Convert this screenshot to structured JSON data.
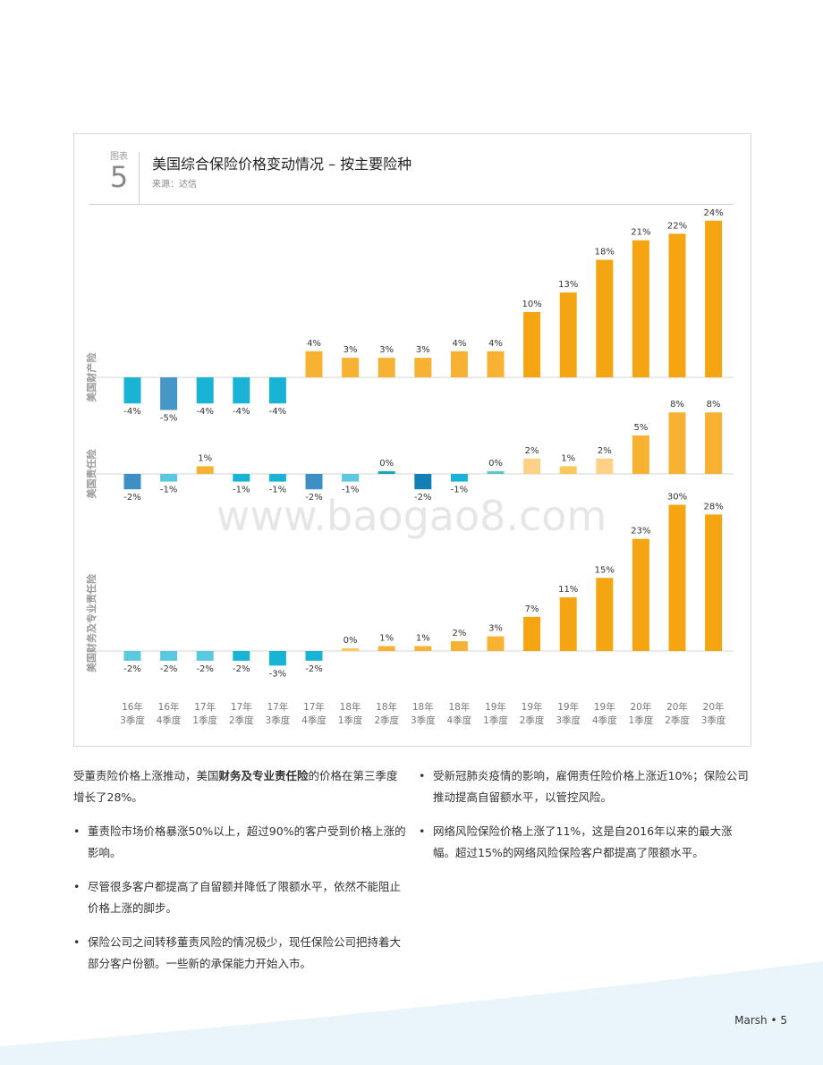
{
  "figure": {
    "label": "图表",
    "number": "5",
    "title": "美国综合保险价格变动情况 – 按主要险种",
    "source": "来源：达信"
  },
  "chart_data": {
    "type": "bar",
    "categories": [
      "16年\n3季度",
      "16年\n4季度",
      "17年\n1季度",
      "17年\n2季度",
      "17年\n3季度",
      "17年\n4季度",
      "18年\n1季度",
      "18年\n2季度",
      "18年\n3季度",
      "18年\n4季度",
      "19年\n1季度",
      "19年\n2季度",
      "19年\n3季度",
      "19年\n4季度",
      "20年\n1季度",
      "20年\n2季度",
      "20年\n3季度"
    ],
    "series": [
      {
        "name": "美国财产险",
        "values": [
          -4,
          -5,
          -4,
          -4,
          -4,
          4,
          3,
          3,
          3,
          4,
          4,
          10,
          13,
          18,
          21,
          22,
          24
        ],
        "colors": [
          "#19b3d6",
          "#4597c6",
          "#19b3d6",
          "#19b3d6",
          "#19b3d6",
          "#f8b233",
          "#f8b233",
          "#f8b233",
          "#f8b233",
          "#f8b233",
          "#f8b233",
          "#f5a511",
          "#f5a511",
          "#f5a511",
          "#f5a511",
          "#f5a511",
          "#f5a511"
        ]
      },
      {
        "name": "美国责任险",
        "values": [
          -2,
          -1,
          1,
          -1,
          -1,
          -2,
          -1,
          0,
          -2,
          -1,
          0,
          2,
          1,
          2,
          5,
          8,
          8
        ],
        "colors": [
          "#3d8fc4",
          "#59c8e0",
          "#f8b233",
          "#19b3d6",
          "#19b3d6",
          "#3d8fc4",
          "#59c8e0",
          "#19a6b8",
          "#137fb5",
          "#19b3d6",
          "#59c8c8",
          "#fdd287",
          "#fbc95a",
          "#fdd287",
          "#f8b233",
          "#f8b233",
          "#f8b233"
        ]
      },
      {
        "name": "美国财务及专业责任险",
        "values": [
          -2,
          -2,
          -2,
          -2,
          -3,
          -2,
          0,
          1,
          1,
          2,
          3,
          7,
          11,
          15,
          23,
          30,
          28
        ],
        "colors": [
          "#59c8e0",
          "#59c8e0",
          "#59c8e0",
          "#19b3d6",
          "#19b3d6",
          "#19b3d6",
          "#fbc95a",
          "#f8b233",
          "#f8b233",
          "#f8b233",
          "#f8b233",
          "#f5a511",
          "#f5a511",
          "#f5a511",
          "#f5a511",
          "#f5a511",
          "#f5a511"
        ]
      }
    ]
  },
  "watermark": "www.baogao8.com",
  "left_col": {
    "intro_pre": "受董责险价格上涨推动，美国",
    "intro_bold": "财务及专业责任险",
    "intro_post": "的价格在第三季度增长了28%。",
    "bullets": [
      "董责险市场价格暴涨50%以上，超过90%的客户受到价格上涨的影响。",
      "尽管很多客户都提高了自留额并降低了限额水平，依然不能阻止价格上涨的脚步。",
      "保险公司之间转移董责风险的情况极少，现任保险公司把持着大部分客户份额。一些新的承保能力开始入市。"
    ]
  },
  "right_col": {
    "bullets": [
      "受新冠肺炎疫情的影响，雇佣责任险价格上涨近10%；保险公司推动提高自留额水平，以管控风险。",
      "网络风险保险价格上涨了11%，这是自2016年以来的最大涨幅。超过15%的网络风险保险客户都提高了限额水平。"
    ]
  },
  "footer": "Marsh • 5"
}
